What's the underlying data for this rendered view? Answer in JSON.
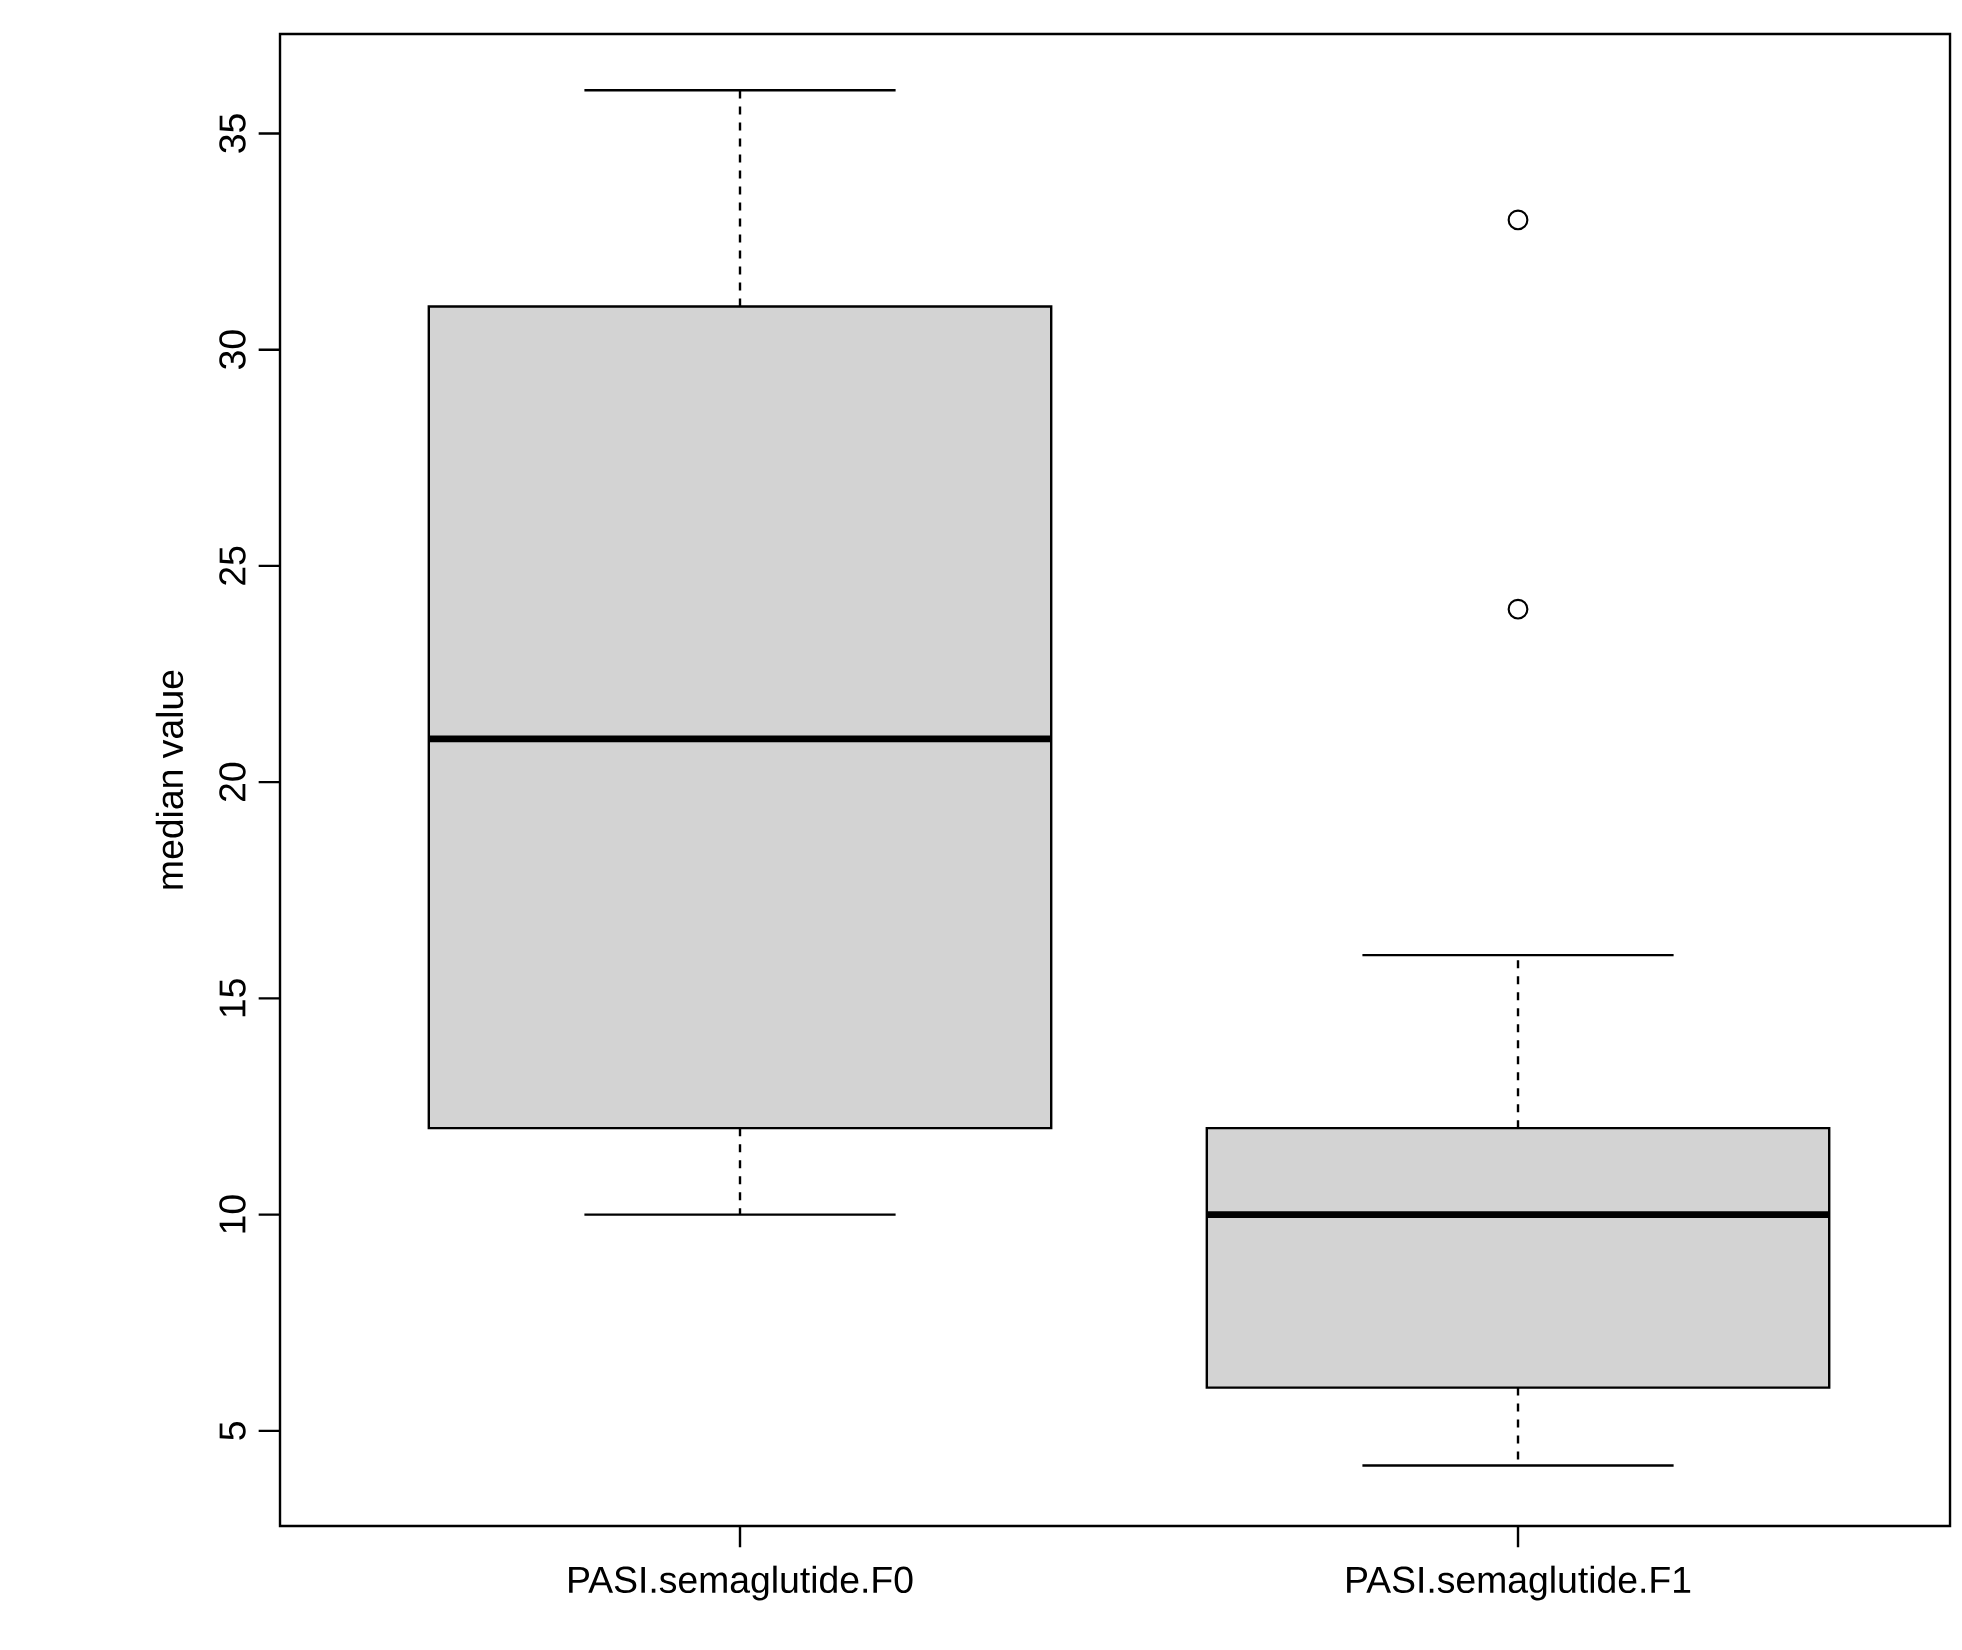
{
  "chart_data": {
    "type": "box",
    "ylabel": "median value",
    "categories": [
      "PASI.semaglutide.F0",
      "PASI.semaglutide.F1"
    ],
    "color": "#d3d3d3",
    "ylim": [
      2.8,
      37.3
    ],
    "yticks": [
      5,
      10,
      15,
      20,
      25,
      30,
      35
    ],
    "boxes": [
      {
        "low": 10,
        "q1": 12,
        "median": 21,
        "q3": 31,
        "high": 36
      },
      {
        "low": 4.2,
        "q1": 6,
        "median": 10,
        "q3": 12,
        "high": 16,
        "outliers": [
          24,
          33
        ]
      }
    ]
  }
}
